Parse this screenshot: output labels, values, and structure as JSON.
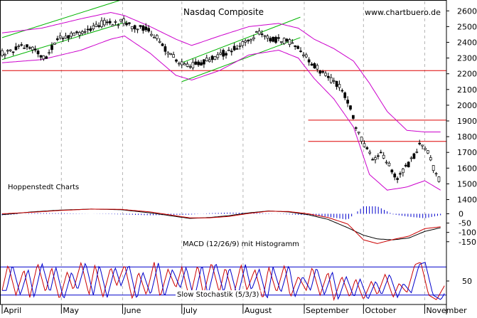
{
  "watermark": "www.chartbuero.de",
  "chart_data": [
    {
      "type": "candlestick",
      "title": "Nasdaq Composite",
      "annotation": "Hoppenstedt Charts",
      "y_ticks": [
        1400,
        1500,
        1600,
        1700,
        1800,
        1900,
        2000,
        2100,
        2200,
        2300,
        2400,
        2500,
        2600
      ],
      "ylim": [
        1330,
        2660
      ],
      "x_range_days": [
        0,
        225
      ],
      "months": [
        {
          "label": "April",
          "day": 0
        },
        {
          "label": "May",
          "day": 30
        },
        {
          "label": "June",
          "day": 61
        },
        {
          "label": "July",
          "day": 91
        },
        {
          "label": "August",
          "day": 122
        },
        {
          "label": "September",
          "day": 153
        },
        {
          "label": "October",
          "day": 183
        },
        {
          "label": "November",
          "day": 214
        }
      ],
      "horizontal_levels": [
        2220,
        1905,
        1770
      ],
      "trend_channels": [
        {
          "x": [
            0,
            63
          ],
          "y": [
            2290,
            2530
          ]
        },
        {
          "x": [
            0,
            63
          ],
          "y": [
            2430,
            2680
          ]
        },
        {
          "x": [
            91,
            151
          ],
          "y": [
            2150,
            2430
          ]
        },
        {
          "x": [
            91,
            151
          ],
          "y": [
            2270,
            2560
          ]
        }
      ],
      "close_anchors": {
        "day": [
          0,
          12,
          22,
          28,
          35,
          42,
          48,
          52,
          58,
          62,
          66,
          70,
          76,
          80,
          84,
          88,
          92,
          96,
          100,
          106,
          112,
          118,
          122,
          126,
          130,
          136,
          142,
          148,
          152,
          156,
          160,
          164,
          168,
          172,
          176,
          180,
          184,
          188,
          192,
          196,
          200,
          204,
          208,
          212,
          216,
          220,
          224
        ],
        "close": [
          2330,
          2380,
          2300,
          2420,
          2440,
          2480,
          2500,
          2530,
          2520,
          2540,
          2490,
          2500,
          2460,
          2400,
          2340,
          2290,
          2270,
          2250,
          2270,
          2300,
          2330,
          2360,
          2390,
          2430,
          2460,
          2420,
          2410,
          2390,
          2340,
          2270,
          2230,
          2190,
          2150,
          2100,
          2000,
          1830,
          1740,
          1650,
          1700,
          1620,
          1520,
          1600,
          1660,
          1770,
          1690,
          1540,
          1520
        ]
      },
      "bollinger_upper": {
        "day": [
          0,
          20,
          40,
          55,
          62,
          75,
          88,
          96,
          110,
          125,
          140,
          150,
          158,
          168,
          178,
          186,
          195,
          205,
          214,
          222
        ],
        "value": [
          2460,
          2490,
          2550,
          2590,
          2570,
          2500,
          2420,
          2380,
          2440,
          2500,
          2520,
          2490,
          2420,
          2360,
          2280,
          2140,
          1960,
          1840,
          1830,
          1830
        ]
      },
      "bollinger_lower": {
        "day": [
          0,
          20,
          40,
          55,
          62,
          75,
          88,
          96,
          110,
          125,
          140,
          150,
          158,
          168,
          178,
          186,
          195,
          205,
          214,
          222
        ],
        "value": [
          2270,
          2290,
          2350,
          2420,
          2440,
          2330,
          2190,
          2160,
          2220,
          2320,
          2350,
          2300,
          2170,
          2040,
          1860,
          1560,
          1460,
          1480,
          1520,
          1460
        ]
      }
    },
    {
      "type": "line",
      "title": "MACD (12/26/9) mit Histogramm",
      "y_ticks": [
        0,
        -50,
        -100,
        -150
      ],
      "ylim": [
        -170,
        40
      ],
      "series": [
        {
          "name": "MACD",
          "color": "#000000",
          "day": [
            0,
            15,
            30,
            45,
            60,
            75,
            85,
            95,
            105,
            115,
            125,
            135,
            145,
            155,
            165,
            175,
            183,
            190,
            198,
            206,
            214,
            222
          ],
          "value": [
            -5,
            10,
            20,
            25,
            22,
            5,
            -10,
            -25,
            -20,
            -10,
            5,
            15,
            10,
            -5,
            -30,
            -75,
            -115,
            -135,
            -140,
            -130,
            -95,
            -75
          ]
        },
        {
          "name": "Signal",
          "color": "#cc0000",
          "day": [
            0,
            15,
            30,
            45,
            60,
            75,
            85,
            95,
            105,
            115,
            125,
            135,
            145,
            155,
            165,
            175,
            183,
            190,
            198,
            206,
            214,
            222
          ],
          "value": [
            0,
            8,
            18,
            25,
            24,
            10,
            -6,
            -22,
            -22,
            -14,
            2,
            14,
            12,
            0,
            -20,
            -55,
            -140,
            -160,
            -138,
            -120,
            -80,
            -70
          ]
        }
      ]
    },
    {
      "type": "line",
      "title": "Slow Stochastik (5/3/3)",
      "y_ticks": [
        50
      ],
      "ylim": [
        0,
        100
      ],
      "levels": [
        20,
        80
      ],
      "series": [
        {
          "name": "%K",
          "color": "#cc0000"
        },
        {
          "name": "%D",
          "color": "#0000cc"
        }
      ],
      "stoch_anchors": {
        "day": [
          0,
          3,
          7,
          11,
          14,
          18,
          22,
          25,
          29,
          33,
          36,
          40,
          44,
          47,
          51,
          55,
          58,
          62,
          66,
          69,
          73,
          77,
          80,
          84,
          88,
          91,
          95,
          99,
          102,
          106,
          110,
          113,
          117,
          121,
          124,
          128,
          132,
          135,
          139,
          143,
          146,
          150,
          154,
          157,
          161,
          165,
          168,
          172,
          176,
          179,
          183,
          187,
          190,
          194,
          198,
          201,
          205,
          209,
          212,
          216,
          220,
          224
        ],
        "value": [
          30,
          85,
          20,
          75,
          15,
          88,
          25,
          80,
          10,
          70,
          30,
          90,
          20,
          85,
          15,
          80,
          40,
          85,
          10,
          70,
          20,
          90,
          15,
          75,
          35,
          80,
          10,
          85,
          20,
          90,
          25,
          80,
          15,
          85,
          30,
          75,
          10,
          80,
          25,
          85,
          15,
          60,
          30,
          80,
          20,
          70,
          10,
          60,
          15,
          55,
          10,
          50,
          20,
          65,
          15,
          45,
          25,
          85,
          90,
          20,
          10,
          40
        ]
      }
    }
  ]
}
